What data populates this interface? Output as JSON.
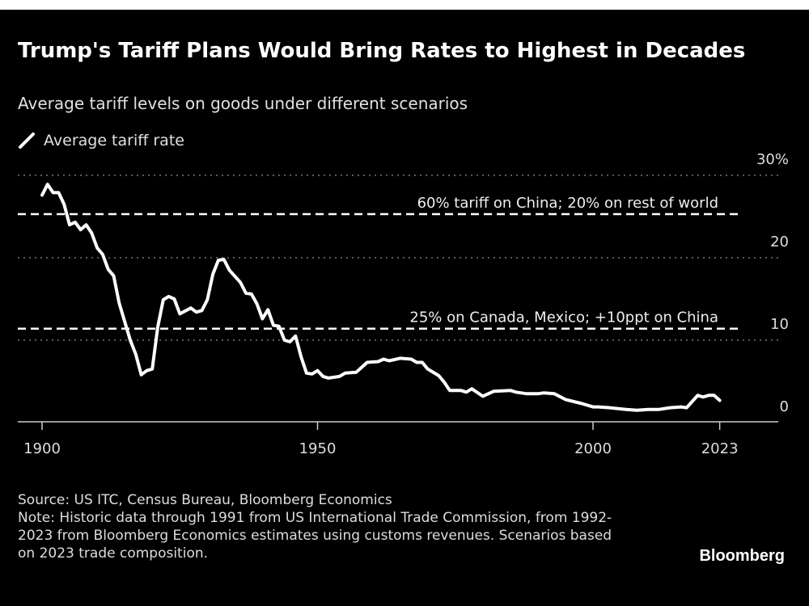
{
  "title": "Trump's Tariff Plans Would Bring Rates to Highest in Decades",
  "subtitle": "Average tariff levels on goods under different scenarios",
  "footer": {
    "source": "Source: US ITC, Census Bureau, Bloomberg Economics",
    "note": "Note: Historic data through 1991 from US International Trade Commission, from 1992-2023 from Bloomberg Economics estimates using customs revenues. Scenarios based on 2023 trade composition."
  },
  "logo": "Bloomberg",
  "colors": {
    "background": "#000000",
    "line": "#ffffff",
    "grid": "#777777",
    "text": "#e0e0e0"
  },
  "chart_data": {
    "type": "line",
    "title": "Trump's Tariff Plans Would Bring Rates to Highest in Decades",
    "legend": {
      "placement": "top-left",
      "entries": [
        "Average tariff rate"
      ]
    },
    "x_ticks": [
      1900,
      1950,
      2000,
      2023
    ],
    "x_tick_labels": [
      "1900",
      "1950",
      "2000",
      "2023"
    ],
    "xlim": [
      1896,
      2029
    ],
    "y_ticks": [
      0,
      10,
      20,
      30
    ],
    "y_tick_labels": [
      "0",
      "10",
      "20",
      "30%"
    ],
    "ylim": [
      0,
      30
    ],
    "grid": "horizontal dotted",
    "y_axis_side": "right",
    "series": [
      {
        "name": "Average tariff rate",
        "x": [
          1900,
          1901,
          1902,
          1903,
          1904,
          1905,
          1906,
          1907,
          1908,
          1909,
          1910,
          1911,
          1912,
          1913,
          1914,
          1916,
          1917,
          1918,
          1919,
          1920,
          1921,
          1922,
          1923,
          1924,
          1925,
          1927,
          1928,
          1929,
          1930,
          1931,
          1932,
          1933,
          1934,
          1936,
          1937,
          1938,
          1939,
          1940,
          1941,
          1942,
          1943,
          1944,
          1945,
          1946,
          1947,
          1948,
          1949,
          1950,
          1951,
          1952,
          1954,
          1955,
          1957,
          1959,
          1961,
          1962,
          1963,
          1965,
          1967,
          1968,
          1969,
          1970,
          1972,
          1973,
          1974,
          1976,
          1977,
          1978,
          1980,
          1982,
          1985,
          1986,
          1988,
          1990,
          1991,
          1993,
          1995,
          1998,
          2000,
          2001,
          2003,
          2006,
          2008,
          2010,
          2012,
          2014,
          2016,
          2017,
          2019,
          2020,
          2021,
          2022,
          2023
        ],
        "values": [
          27.6,
          28.9,
          27.9,
          27.9,
          26.5,
          24.0,
          24.3,
          23.4,
          24.0,
          23.0,
          21.2,
          20.4,
          18.6,
          17.8,
          14.5,
          10.0,
          8.3,
          5.8,
          6.3,
          6.5,
          11.6,
          14.9,
          15.3,
          15.0,
          13.2,
          13.9,
          13.4,
          13.6,
          14.9,
          18.0,
          19.7,
          19.8,
          18.5,
          17.0,
          15.7,
          15.6,
          14.4,
          12.6,
          13.7,
          11.8,
          11.7,
          10.0,
          9.8,
          10.5,
          8.0,
          6.0,
          5.9,
          6.3,
          5.6,
          5.4,
          5.6,
          6.0,
          6.1,
          7.3,
          7.4,
          7.7,
          7.5,
          7.8,
          7.7,
          7.3,
          7.3,
          6.5,
          5.7,
          4.9,
          3.9,
          3.9,
          3.7,
          4.1,
          3.2,
          3.8,
          3.9,
          3.7,
          3.5,
          3.5,
          3.6,
          3.5,
          2.8,
          2.3,
          1.9,
          1.9,
          1.8,
          1.6,
          1.5,
          1.6,
          1.6,
          1.8,
          1.9,
          1.8,
          3.3,
          3.1,
          3.3,
          3.3,
          2.7
        ]
      }
    ],
    "reference_lines": [
      {
        "label": "60% tariff on China; 20% on rest of world",
        "value": 25.3,
        "style": "dashed"
      },
      {
        "label": "25% on Canada, Mexico; +10ppt on China",
        "value": 11.4,
        "style": "dashed"
      }
    ]
  }
}
